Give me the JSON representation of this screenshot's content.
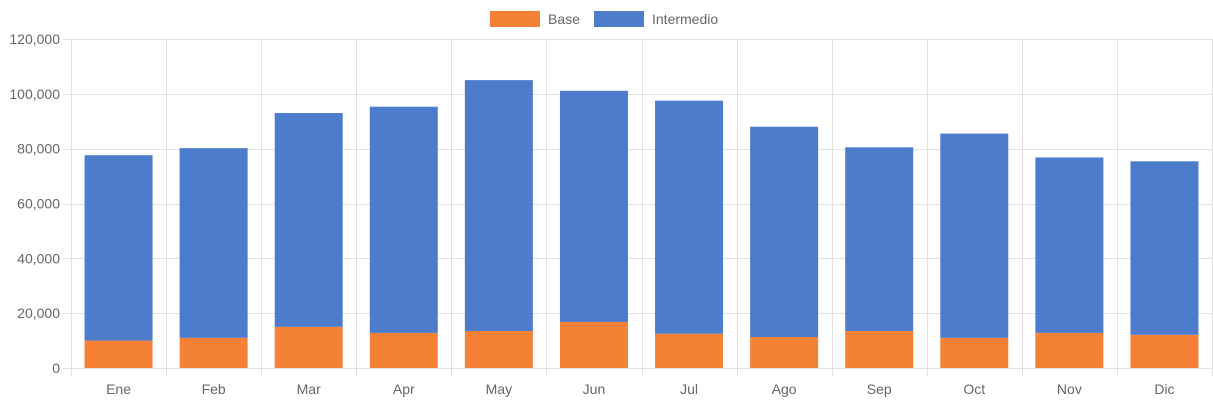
{
  "colors": {
    "base": "#f58137",
    "intermedio": "#4e7ccc",
    "grid": "#e0e0e0",
    "text": "#666666"
  },
  "chart_data": {
    "type": "bar",
    "stacked": true,
    "categories": [
      "Ene",
      "Feb",
      "Mar",
      "Apr",
      "May",
      "Jun",
      "Jul",
      "Ago",
      "Sep",
      "Oct",
      "Nov",
      "Dic"
    ],
    "series": [
      {
        "name": "Base",
        "color": "#f58137",
        "values": [
          10000,
          11000,
          15000,
          12800,
          13500,
          16800,
          12500,
          11300,
          13500,
          11000,
          12800,
          12100
        ]
      },
      {
        "name": "Intermedio",
        "color": "#4e7ccc",
        "values": [
          67600,
          69200,
          78000,
          82500,
          91500,
          84300,
          85000,
          76700,
          67000,
          74500,
          64000,
          63300
        ]
      }
    ],
    "ylim": [
      0,
      120000
    ],
    "yticks": [
      "0",
      "20,000",
      "40,000",
      "60,000",
      "80,000",
      "100,000",
      "120,000"
    ],
    "ytick_values": [
      0,
      20000,
      40000,
      60000,
      80000,
      100000,
      120000
    ],
    "grid": true,
    "legend": "top-center"
  }
}
